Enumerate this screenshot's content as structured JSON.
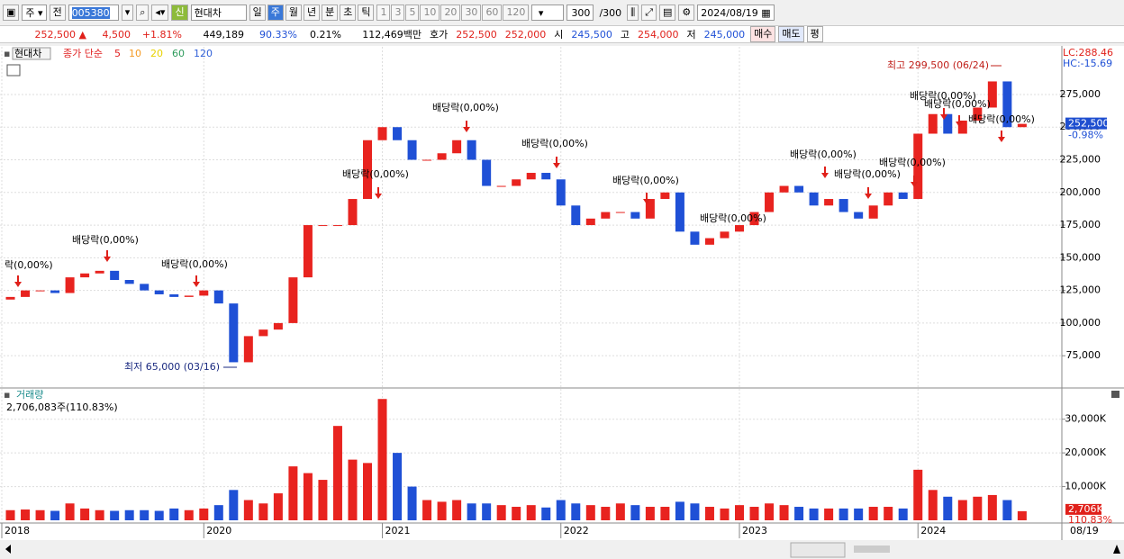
{
  "toolbar": {
    "cycle": "주",
    "prev": "전",
    "code": "005380",
    "new_badge": "신",
    "name": "현대차",
    "periods": [
      "일",
      "주",
      "월",
      "년",
      "분",
      "초",
      "틱"
    ],
    "intervals": [
      "1",
      "3",
      "5",
      "10",
      "20",
      "30",
      "60",
      "120"
    ],
    "count": "300",
    "count_max": "/300",
    "date": "2024/08/19"
  },
  "quote": {
    "price": "252,500 ▲",
    "change": "4,500",
    "change_rate": "+1.81%",
    "volume": "449,189",
    "volume_ratio": "90.33%",
    "turnover": "0.21%",
    "amount": "112,469백만",
    "ask_label": "호가",
    "ask": "252,500",
    "bid": "252,000",
    "open_label": "시",
    "open": "245,500",
    "high_label": "고",
    "high": "254,000",
    "low_label": "저",
    "low": "245,000",
    "buy": "매수",
    "sell": "매도",
    "avg": "평"
  },
  "chart_data": [
    {
      "type": "candlestick",
      "legend_name": "현대차",
      "legend_title": "종가 단순",
      "ma_periods": [
        "5",
        "10",
        "20",
        "60",
        "120"
      ],
      "categories": [
        "2018",
        null,
        null,
        null,
        null,
        null,
        null,
        null,
        null,
        null,
        null,
        null,
        null,
        null,
        "2020",
        null,
        null,
        null,
        null,
        null,
        null,
        null,
        null,
        null,
        null,
        null,
        "2021",
        null,
        null,
        null,
        null,
        null,
        null,
        null,
        null,
        null,
        null,
        null,
        "2022",
        null,
        null,
        null,
        null,
        null,
        null,
        null,
        null,
        null,
        null,
        null,
        "2023",
        null,
        null,
        null,
        null,
        null,
        null,
        null,
        null,
        null,
        null,
        null,
        "2024",
        null,
        null,
        null,
        null,
        null,
        null,
        null
      ],
      "values": [
        118000,
        120000,
        125000,
        125000,
        123000,
        135000,
        138000,
        140000,
        133000,
        130000,
        125000,
        122000,
        120000,
        121000,
        125000,
        115000,
        70000,
        90000,
        95000,
        100000,
        135000,
        175000,
        175000,
        175000,
        195000,
        240000,
        250000,
        240000,
        225000,
        225000,
        230000,
        240000,
        225000,
        205000,
        205000,
        210000,
        215000,
        210000,
        190000,
        175000,
        180000,
        185000,
        185000,
        180000,
        195000,
        200000,
        170000,
        160000,
        165000,
        170000,
        175000,
        185000,
        200000,
        205000,
        200000,
        190000,
        195000,
        185000,
        180000,
        190000,
        200000,
        195000,
        245000,
        260000,
        245000,
        255000,
        265000,
        285000,
        250000,
        252500
      ],
      "colors": {
        "up": "#e8231f",
        "down": "#1f50d6"
      },
      "ma_colors": [
        "#e02020",
        "#f59a23",
        "#e8d200",
        "#2e9b5c",
        "#2f5fd8"
      ],
      "ylim": [
        51000,
        311500
      ],
      "yticks": [
        {
          "value": 75000,
          "label": "75,000"
        },
        {
          "value": 100000,
          "label": "100,000"
        },
        {
          "value": 125000,
          "label": "125,000"
        },
        {
          "value": 150000,
          "label": "150,000"
        },
        {
          "value": 175000,
          "label": "175,000"
        },
        {
          "value": 200000,
          "label": "200,000"
        },
        {
          "value": 225000,
          "label": "225,000"
        },
        {
          "value": 250000,
          "label": "250,000"
        },
        {
          "value": 275000,
          "label": "275,000"
        }
      ],
      "grid": true,
      "last_label": "252,500",
      "last_change": "-0.98%",
      "lc": "LC:288.46",
      "hc": "HC:-15.69",
      "x_end_label": "08/19",
      "high_note": "최고 299,500 (06/24)",
      "low_note": "최저 65,000 (03/16)",
      "annotations": [
        "락(0,00%)",
        "배당락(0,00%)",
        "배당락(0,00%)",
        "배당락(0,00%)",
        "배당락(0,00%)",
        "배당락(0,00%)",
        "배당락(0,00%)",
        "배당락(0,00%)",
        "배당락(0,00%)",
        "배당락(0,00%)",
        "배당락(0,00%)",
        "배당락(0,00%)",
        "배당락(0,00%)",
        "배당락(0,00%)"
      ]
    },
    {
      "type": "bar",
      "title": "거래량",
      "subtitle": "2,706,083주(110.83%)",
      "values": [
        3500,
        3000,
        3200,
        3000,
        2800,
        5000,
        3500,
        3000,
        2800,
        3000,
        3000,
        2800,
        3500,
        3000,
        3500,
        4500,
        9000,
        6000,
        5000,
        8000,
        16000,
        14000,
        12000,
        28000,
        18000,
        17000,
        36000,
        20000,
        10000,
        6000,
        5500,
        6000,
        5000,
        5000,
        4500,
        4000,
        4500,
        3800,
        6000,
        5000,
        4500,
        4000,
        5000,
        4500,
        4000,
        4000,
        5500,
        5000,
        4000,
        3500,
        4500,
        4000,
        5000,
        4500,
        4000,
        3500,
        3500,
        3500,
        3500,
        4000,
        4000,
        3500,
        15000,
        9000,
        7000,
        6000,
        7000,
        7500,
        6000,
        2706
      ],
      "ylim": [
        0,
        39000
      ],
      "yticks": [
        {
          "value": 10000,
          "label": "10,000K"
        },
        {
          "value": 20000,
          "label": "20,000K"
        },
        {
          "value": 30000,
          "label": "30,000K"
        }
      ],
      "grid": true,
      "last_label": "2,706K",
      "last_ratio": "110.83%"
    }
  ]
}
